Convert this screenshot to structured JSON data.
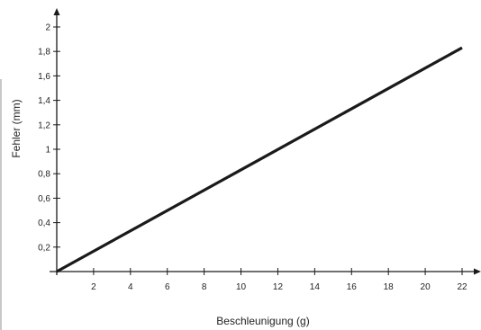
{
  "chart_data": {
    "type": "line",
    "title": "",
    "xlabel": "Beschleunigung (g)",
    "ylabel": "Fehler (mm)",
    "xlim": [
      0,
      22
    ],
    "ylim": [
      0,
      2
    ],
    "x_ticks": [
      2,
      4,
      6,
      8,
      10,
      12,
      14,
      16,
      18,
      20,
      22
    ],
    "x_tick_labels": [
      "2",
      "4",
      "6",
      "8",
      "10",
      "12",
      "14",
      "16",
      "18",
      "20",
      "22"
    ],
    "y_ticks": [
      0.2,
      0.4,
      0.6,
      0.8,
      1,
      1.2,
      1.4,
      1.6,
      1.8,
      2
    ],
    "y_tick_labels": [
      "0,2",
      "0,4",
      "0,6",
      "0,8",
      "1",
      "1,2",
      "1,4",
      "1,6",
      "1,8",
      "2"
    ],
    "grid": false,
    "legend": "none",
    "series": [
      {
        "x": [
          0,
          22
        ],
        "y": [
          0,
          1.83
        ]
      }
    ],
    "colors": {
      "line": "#1a1a1a",
      "axis": "#1a1a1a",
      "text": "#222222"
    }
  }
}
